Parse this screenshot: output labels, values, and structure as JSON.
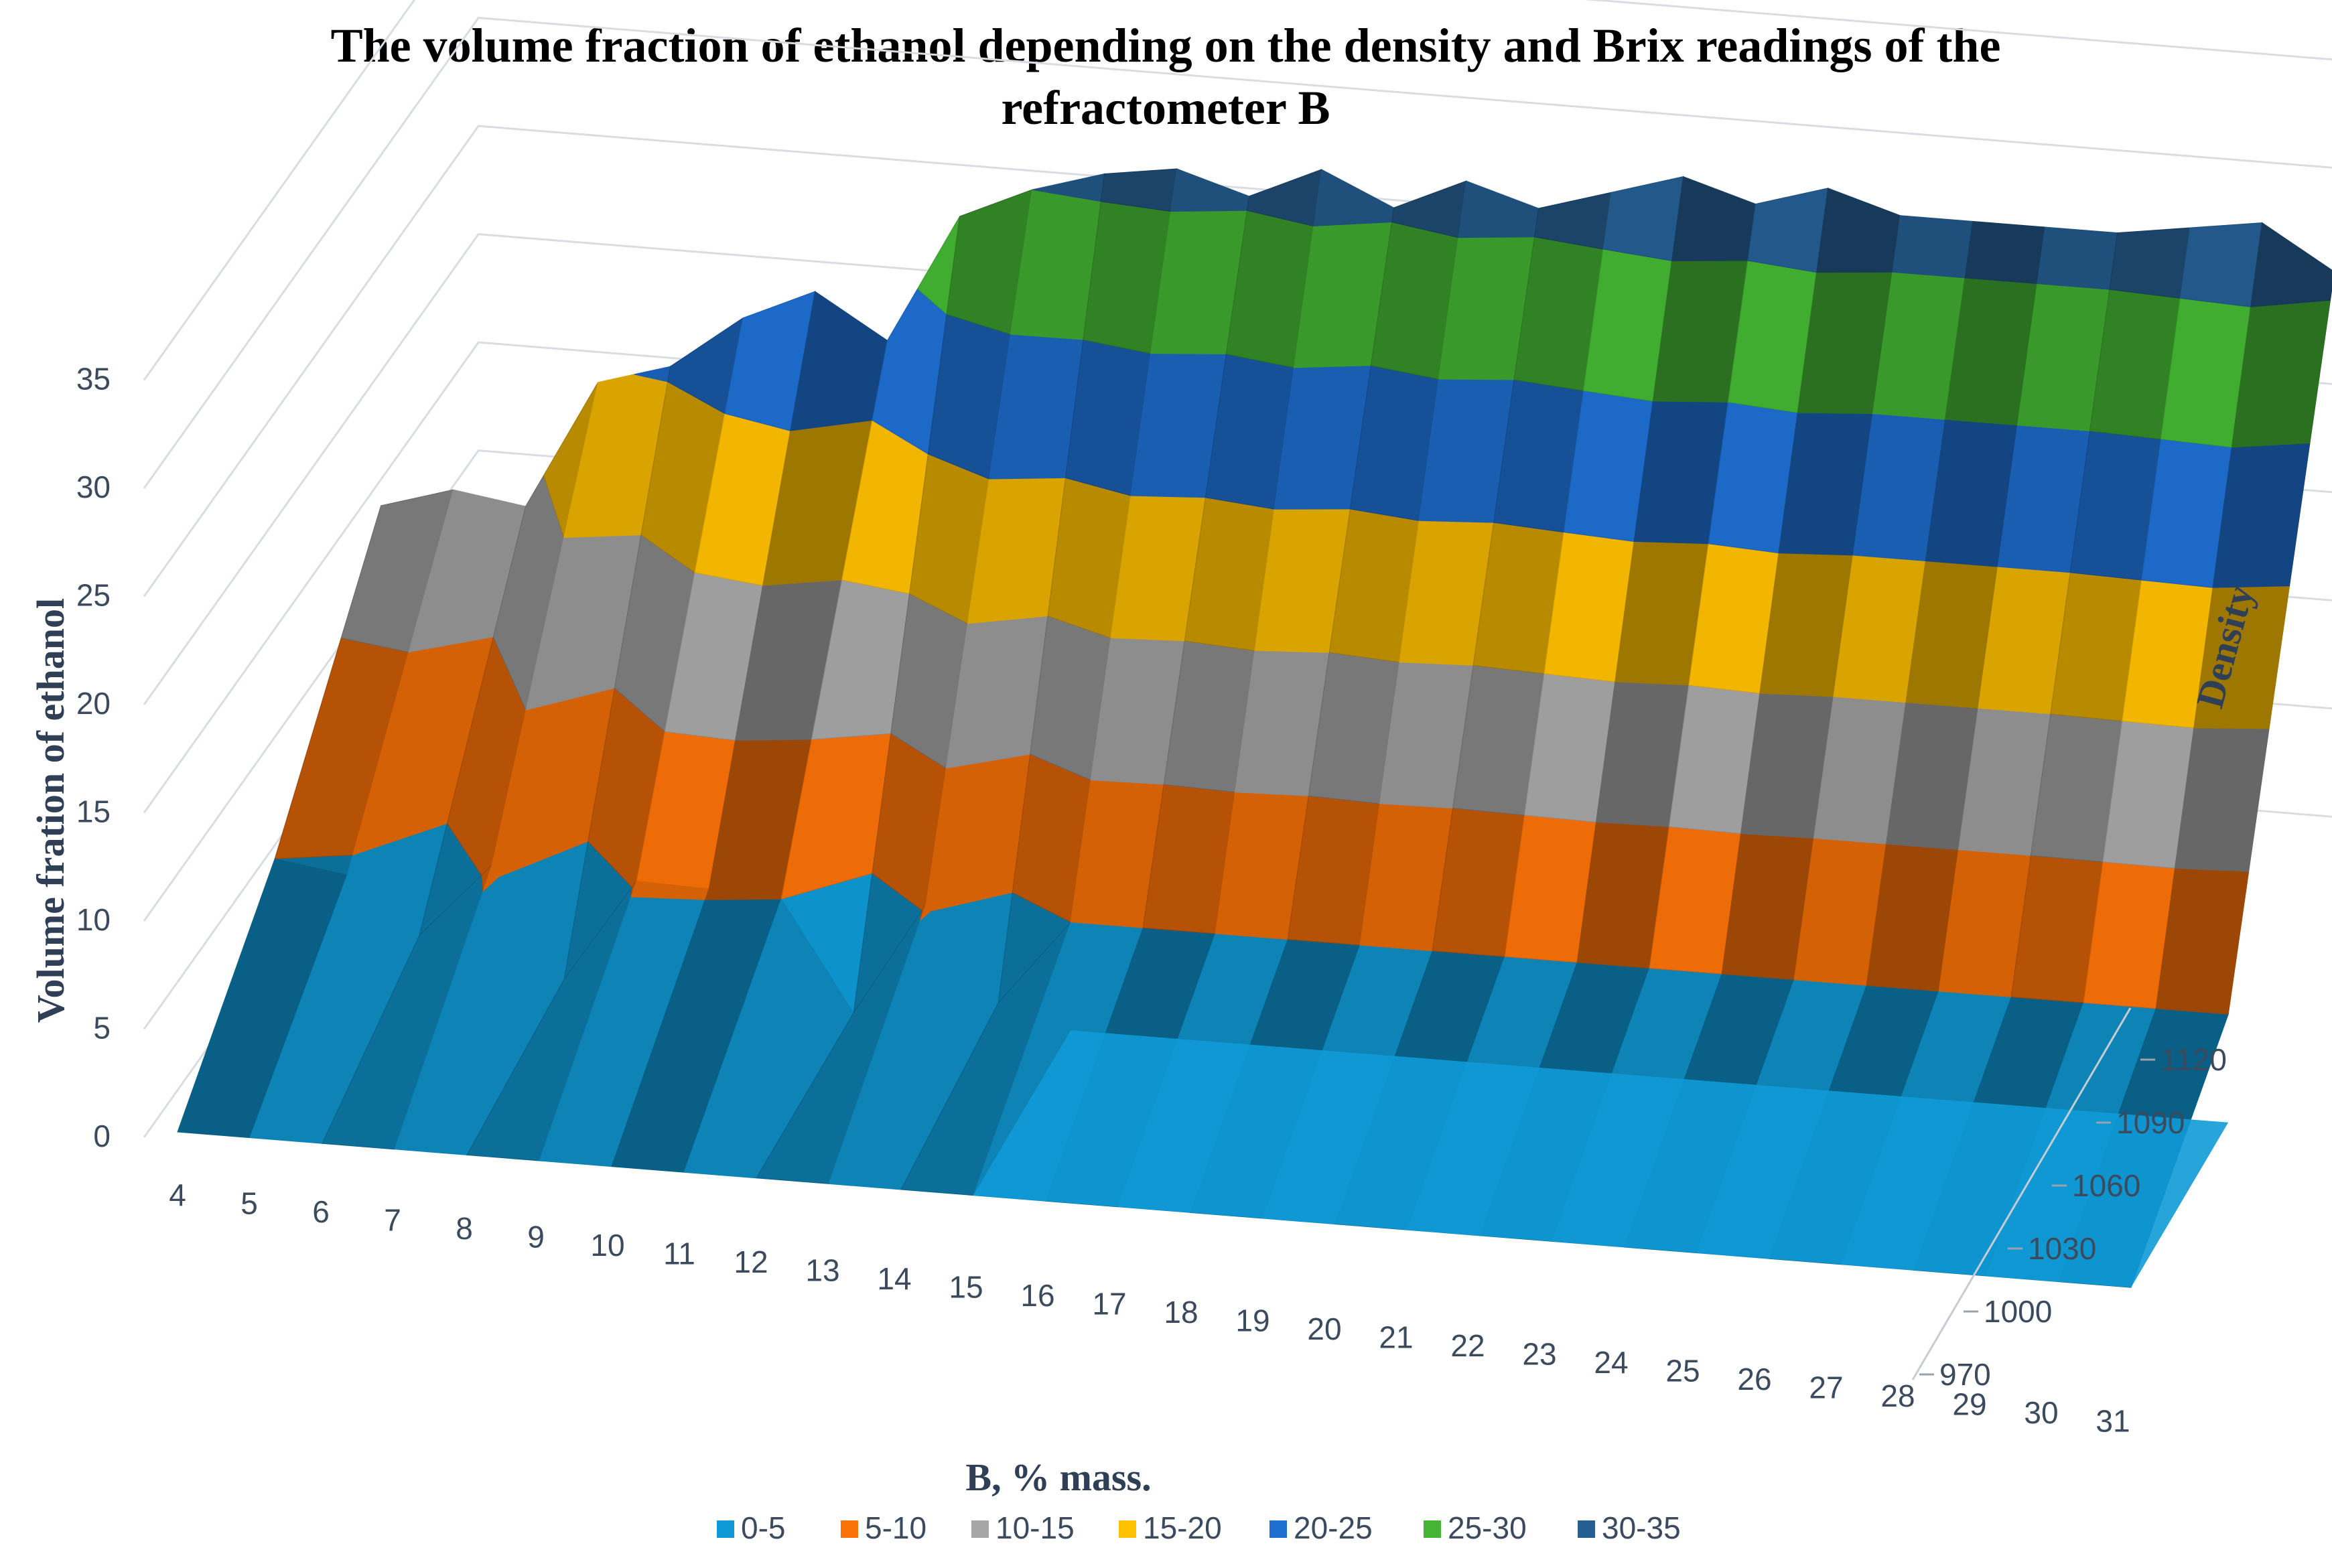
{
  "chart_data": {
    "type": "surface",
    "title_line1": "The volume fraction of ethanol depending on the density and Brix readings of the",
    "title_line2": "refractometer B",
    "xlabel": "B, % mass.",
    "ylabel": "Volume fration of ethanol",
    "zlabel": "Density",
    "y_ticks": [
      "0",
      "5",
      "10",
      "15",
      "20",
      "25",
      "30",
      "35"
    ],
    "x_ticks": [
      "4",
      "5",
      "6",
      "7",
      "8",
      "9",
      "10",
      "11",
      "12",
      "13",
      "14",
      "15",
      "16",
      "17",
      "18",
      "19",
      "20",
      "21",
      "22",
      "23",
      "24",
      "25",
      "26",
      "27",
      "28",
      "29",
      "30",
      "31"
    ],
    "z_ticks": [
      "970",
      "1000",
      "1030",
      "1060",
      "1090",
      "1120"
    ],
    "ylim": [
      0,
      35
    ],
    "brix": [
      4,
      5,
      6,
      7,
      8,
      9,
      10,
      11,
      12,
      13,
      14,
      15,
      16,
      17,
      18,
      19,
      20,
      21,
      22,
      23,
      24,
      25,
      26,
      27,
      28,
      29,
      30,
      31
    ],
    "front_profile": [
      0,
      0,
      0,
      0,
      0,
      0,
      0,
      0,
      0,
      0,
      0,
      0,
      0,
      0,
      0,
      0,
      0,
      0,
      0,
      0,
      0,
      0,
      0,
      0,
      0,
      0,
      0,
      0
    ],
    "mid_profile": [
      5,
      4.5,
      2,
      5.5,
      0.5,
      5.3,
      5.2,
      5,
      0,
      5.3,
      1,
      5,
      5,
      5,
      5,
      5,
      5,
      5,
      5,
      5,
      5,
      5,
      5,
      5,
      5,
      5,
      5,
      5
    ],
    "back_profile": [
      13,
      14,
      13.5,
      19.5,
      20.5,
      23,
      24.5,
      22.5,
      28.5,
      30,
      31,
      31.5,
      30.5,
      32,
      30.5,
      32,
      31,
      32,
      33,
      32,
      33,
      32,
      32,
      32,
      32,
      32.5,
      33,
      31
    ],
    "legend": [
      "0-5",
      "5-10",
      "10-15",
      "15-20",
      "20-25",
      "25-30",
      "30-35"
    ],
    "band_colors": [
      "#0f9ad6",
      "#fb7208",
      "#a6a6a6",
      "#ffc000",
      "#1f6fd1",
      "#43b533",
      "#255e91"
    ]
  }
}
